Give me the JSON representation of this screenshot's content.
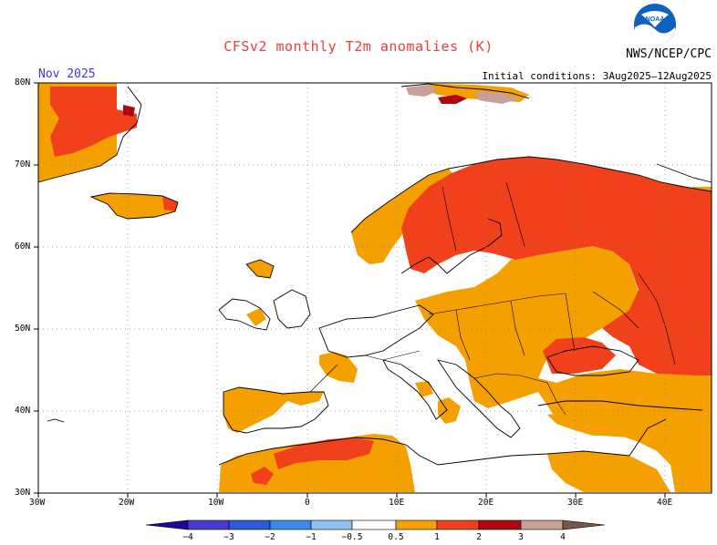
{
  "title": "CFSv2 monthly T2m anomalies (K)",
  "valid_month": "Nov 2025",
  "agency": "NWS/NCEP/CPC",
  "initial_conditions": "Initial conditions: 3Aug2025–12Aug2025",
  "logo_text": "NOAA",
  "lat_labels": [
    "80N",
    "70N",
    "60N",
    "50N",
    "40N",
    "30N"
  ],
  "lon_labels": [
    "30W",
    "20W",
    "10W",
    "0",
    "10E",
    "20E",
    "30E",
    "40E"
  ],
  "colorbar": {
    "tick_labels": [
      "−4",
      "−3",
      "−2",
      "−1",
      "−0.5",
      "0.5",
      "1",
      "2",
      "3",
      "4"
    ],
    "colors": [
      "#1a0a96",
      "#4a3ad0",
      "#2a5ad8",
      "#3a8ae8",
      "#8cc0f0",
      "#ffffff",
      "#f4a000",
      "#f0401c",
      "#b00810",
      "#c8a098",
      "#7a5448"
    ]
  },
  "legend_classes": {
    "0.5-1": "#f4a000",
    "1-2": "#f0401c",
    "2-3": "#b00810",
    "3-4": "#c8a098"
  }
}
